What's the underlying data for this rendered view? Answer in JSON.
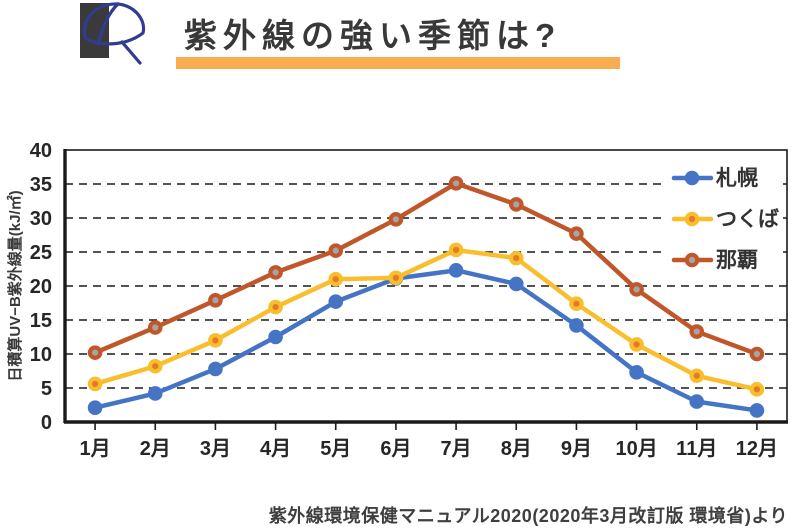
{
  "header": {
    "title": "紫外線の強い季節は?",
    "icon": "parasol-icon",
    "underline_color": "#F9AD51",
    "title_color": "#383838",
    "icon_umbrella_color": "#303C90",
    "icon_block_color": "#3A3A3A"
  },
  "caption": "紫外線環境保健マニュアル2020(2020年3月改訂版 環境省)より",
  "chart_data": {
    "type": "line",
    "title": "",
    "xlabel": "",
    "ylabel": "日積算UV−B紫外線量(kJ/㎡)",
    "ylim": [
      0,
      40
    ],
    "ytick_step": 5,
    "grid": "dashed-horizontal-at-5-unit-steps",
    "legend_position": "top-right-inside",
    "axis_color": "#1A1A1A",
    "tick_label_color": "#262626",
    "categories": [
      "1月",
      "2月",
      "3月",
      "4月",
      "5月",
      "6月",
      "7月",
      "8月",
      "9月",
      "10月",
      "11月",
      "12月"
    ],
    "series": [
      {
        "name": "札幌",
        "color": "#4574C4",
        "marker_center": "#4574C4",
        "values": [
          2.1,
          4.2,
          7.8,
          12.5,
          17.7,
          21.1,
          22.3,
          20.3,
          14.2,
          7.3,
          3.0,
          1.7
        ]
      },
      {
        "name": "つくば",
        "color": "#F8BE2E",
        "marker_center": "#E87726",
        "values": [
          5.6,
          8.2,
          12.0,
          16.9,
          21.0,
          21.2,
          25.3,
          24.1,
          17.4,
          11.4,
          6.8,
          4.8
        ]
      },
      {
        "name": "那覇",
        "color": "#C0572B",
        "marker_center": "#A5A5A5",
        "values": [
          10.2,
          13.9,
          17.9,
          22.0,
          25.2,
          29.8,
          35.1,
          32.0,
          27.7,
          19.5,
          13.3,
          10.0
        ]
      }
    ]
  }
}
